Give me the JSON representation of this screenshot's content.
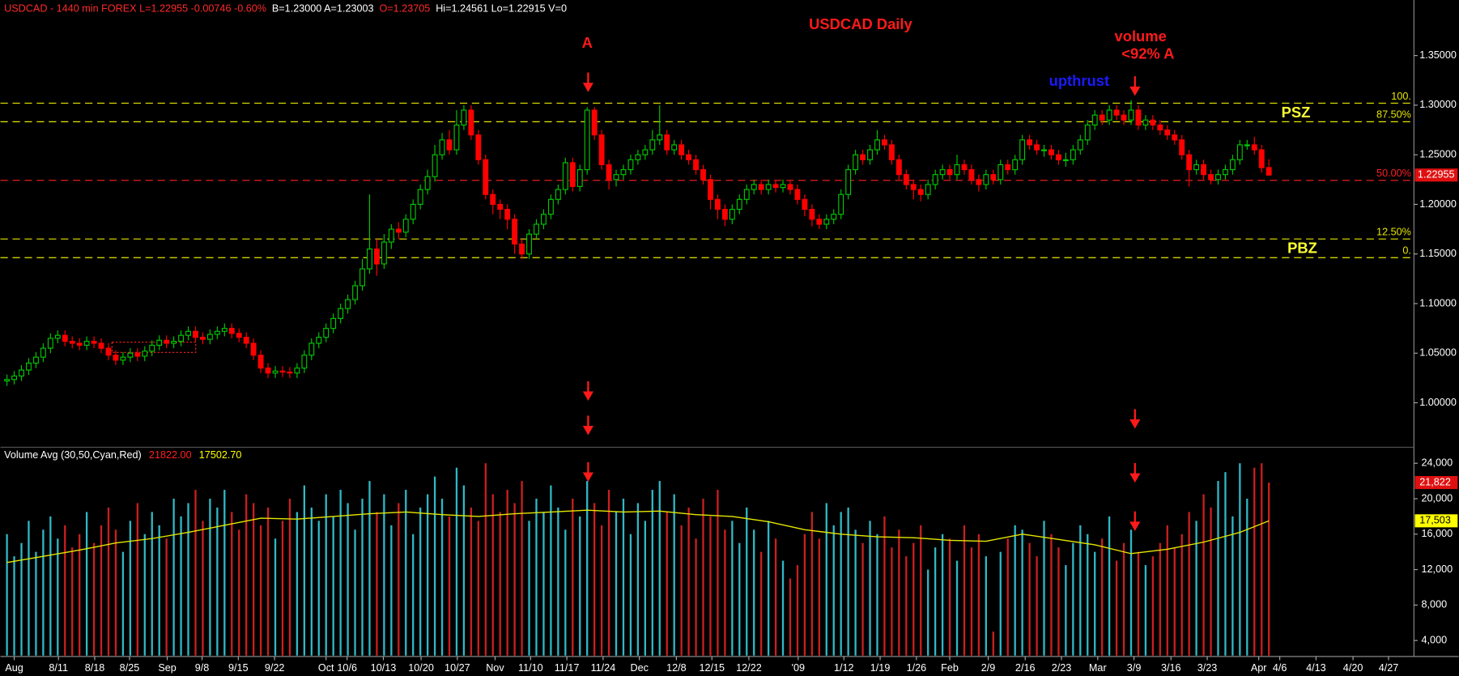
{
  "header": [
    {
      "text": "USDCAD - 1440 min  FOREX  L=1.22955  -0.00746  -0.60%",
      "color": "#ff2a2a"
    },
    {
      "text": "B=1.23000  A=1.23003",
      "color": "#ffffff"
    },
    {
      "text": "O=1.23705",
      "color": "#ff2a2a"
    },
    {
      "text": "Hi=1.24561  Lo=1.22915  V=0",
      "color": "#ffffff"
    }
  ],
  "chart_data": [
    {
      "type": "candlestick",
      "title": "USDCAD Daily",
      "up_color": "#00c800",
      "down_color": "#ff0000",
      "annotations": [
        "A",
        "volume",
        "<92% A",
        "upthrust",
        "PSZ",
        "PBZ"
      ],
      "xlim": [
        -0.9,
        194
      ],
      "ylim": [
        0.958,
        1.406
      ],
      "yticks": [
        {
          "value": 1.0,
          "label": "1.00000"
        },
        {
          "value": 1.05,
          "label": "1.05000"
        },
        {
          "value": 1.1,
          "label": "1.10000"
        },
        {
          "value": 1.15,
          "label": "1.15000"
        },
        {
          "value": 1.2,
          "label": "1.20000"
        },
        {
          "value": 1.25,
          "label": "1.25000"
        },
        {
          "value": 1.3,
          "label": "1.30000"
        },
        {
          "value": 1.35,
          "label": "1.35000"
        }
      ],
      "levels": [
        {
          "value": 1.302,
          "label": "100.",
          "color": "#e6e600"
        },
        {
          "value": 1.2833,
          "label": "87.50%",
          "color": "#e6e600"
        },
        {
          "value": 1.2242,
          "label": "50.00%",
          "color": "#ff2020"
        },
        {
          "value": 1.1651,
          "label": "12.50%",
          "color": "#e6e600"
        },
        {
          "value": 1.1463,
          "label": "0.",
          "color": "#e6e600"
        }
      ],
      "open": [
        1.022,
        1.0235,
        1.027,
        1.033,
        1.04,
        1.046,
        1.055,
        1.065,
        1.068,
        1.062,
        1.06,
        1.058,
        1.062,
        1.06,
        1.055,
        1.048,
        1.043,
        1.046,
        1.05,
        1.047,
        1.052,
        1.058,
        1.063,
        1.06,
        1.062,
        1.068,
        1.072,
        1.066,
        1.064,
        1.069,
        1.072,
        1.075,
        1.07,
        1.066,
        1.06,
        1.048,
        1.035,
        1.03,
        1.032,
        1.031,
        1.03,
        1.035,
        1.048,
        1.06,
        1.066,
        1.075,
        1.085,
        1.095,
        1.104,
        1.118,
        1.135,
        1.155,
        1.14,
        1.162,
        1.175,
        1.172,
        1.185,
        1.2,
        1.215,
        1.228,
        1.25,
        1.265,
        1.255,
        1.28,
        1.295,
        1.27,
        1.245,
        1.21,
        1.2,
        1.195,
        1.185,
        1.16,
        1.15,
        1.17,
        1.18,
        1.19,
        1.205,
        1.215,
        1.242,
        1.218,
        1.235,
        1.295,
        1.27,
        1.24,
        1.225,
        1.23,
        1.235,
        1.245,
        1.25,
        1.255,
        1.265,
        1.27,
        1.255,
        1.26,
        1.25,
        1.245,
        1.235,
        1.225,
        1.205,
        1.195,
        1.185,
        1.195,
        1.205,
        1.215,
        1.22,
        1.215,
        1.22,
        1.217,
        1.22,
        1.215,
        1.205,
        1.195,
        1.185,
        1.18,
        1.185,
        1.19,
        1.21,
        1.235,
        1.25,
        1.245,
        1.255,
        1.265,
        1.26,
        1.245,
        1.23,
        1.22,
        1.215,
        1.21,
        1.22,
        1.23,
        1.235,
        1.23,
        1.24,
        1.235,
        1.225,
        1.22,
        1.23,
        1.225,
        1.24,
        1.235,
        1.245,
        1.265,
        1.26,
        1.255,
        1.255,
        1.25,
        1.245,
        1.245,
        1.255,
        1.265,
        1.28,
        1.29,
        1.285,
        1.295,
        1.29,
        1.285,
        1.295,
        1.28,
        1.285,
        1.28,
        1.275,
        1.27,
        1.265,
        1.25,
        1.235,
        1.24,
        1.23,
        1.225,
        1.23,
        1.235,
        1.245,
        1.26,
        1.26,
        1.255,
        1.23705
      ],
      "high": [
        1.0285,
        1.032,
        1.038,
        1.045,
        1.051,
        1.06,
        1.07,
        1.073,
        1.073,
        1.067,
        1.065,
        1.067,
        1.067,
        1.065,
        1.06,
        1.053,
        1.051,
        1.055,
        1.055,
        1.057,
        1.063,
        1.068,
        1.068,
        1.067,
        1.073,
        1.077,
        1.077,
        1.071,
        1.074,
        1.077,
        1.08,
        1.08,
        1.075,
        1.071,
        1.065,
        1.053,
        1.04,
        1.037,
        1.037,
        1.036,
        1.04,
        1.053,
        1.065,
        1.071,
        1.08,
        1.09,
        1.1,
        1.109,
        1.123,
        1.145,
        1.21,
        1.165,
        1.17,
        1.18,
        1.182,
        1.19,
        1.205,
        1.22,
        1.235,
        1.26,
        1.272,
        1.275,
        1.295,
        1.3,
        1.3,
        1.275,
        1.25,
        1.215,
        1.205,
        1.2,
        1.19,
        1.165,
        1.175,
        1.185,
        1.195,
        1.21,
        1.22,
        1.247,
        1.247,
        1.24,
        1.298,
        1.298,
        1.275,
        1.245,
        1.235,
        1.24,
        1.25,
        1.255,
        1.26,
        1.275,
        1.3,
        1.275,
        1.265,
        1.265,
        1.255,
        1.25,
        1.24,
        1.23,
        1.21,
        1.2,
        1.2,
        1.21,
        1.22,
        1.225,
        1.225,
        1.225,
        1.225,
        1.225,
        1.225,
        1.22,
        1.21,
        1.2,
        1.19,
        1.19,
        1.195,
        1.215,
        1.24,
        1.255,
        1.255,
        1.26,
        1.275,
        1.27,
        1.265,
        1.25,
        1.235,
        1.225,
        1.22,
        1.225,
        1.235,
        1.24,
        1.24,
        1.25,
        1.245,
        1.24,
        1.23,
        1.235,
        1.235,
        1.245,
        1.245,
        1.25,
        1.27,
        1.27,
        1.265,
        1.26,
        1.26,
        1.255,
        1.252,
        1.26,
        1.27,
        1.285,
        1.295,
        1.295,
        1.3,
        1.3,
        1.295,
        1.305,
        1.3,
        1.29,
        1.29,
        1.285,
        1.28,
        1.275,
        1.27,
        1.255,
        1.245,
        1.245,
        1.235,
        1.235,
        1.24,
        1.25,
        1.265,
        1.265,
        1.268,
        1.26,
        1.24561
      ],
      "low": [
        1.017,
        1.0185,
        1.022,
        1.028,
        1.035,
        1.041,
        1.05,
        1.06,
        1.057,
        1.055,
        1.053,
        1.053,
        1.055,
        1.05,
        1.043,
        1.038,
        1.038,
        1.041,
        1.042,
        1.042,
        1.047,
        1.053,
        1.055,
        1.055,
        1.057,
        1.063,
        1.061,
        1.059,
        1.059,
        1.064,
        1.067,
        1.065,
        1.061,
        1.055,
        1.043,
        1.03,
        1.025,
        1.025,
        1.026,
        1.025,
        1.025,
        1.03,
        1.043,
        1.055,
        1.061,
        1.07,
        1.08,
        1.09,
        1.099,
        1.113,
        1.13,
        1.128,
        1.135,
        1.155,
        1.165,
        1.167,
        1.18,
        1.195,
        1.21,
        1.223,
        1.245,
        1.25,
        1.25,
        1.275,
        1.265,
        1.24,
        1.205,
        1.19,
        1.185,
        1.175,
        1.15,
        1.145,
        1.145,
        1.165,
        1.175,
        1.185,
        1.2,
        1.21,
        1.213,
        1.213,
        1.23,
        1.265,
        1.235,
        1.215,
        1.218,
        1.225,
        1.23,
        1.24,
        1.245,
        1.25,
        1.26,
        1.25,
        1.25,
        1.245,
        1.24,
        1.23,
        1.22,
        1.195,
        1.185,
        1.178,
        1.18,
        1.19,
        1.2,
        1.21,
        1.21,
        1.21,
        1.212,
        1.212,
        1.21,
        1.2,
        1.188,
        1.178,
        1.175,
        1.175,
        1.18,
        1.185,
        1.205,
        1.23,
        1.24,
        1.24,
        1.25,
        1.255,
        1.24,
        1.225,
        1.215,
        1.205,
        1.203,
        1.205,
        1.215,
        1.225,
        1.225,
        1.225,
        1.23,
        1.22,
        1.213,
        1.215,
        1.22,
        1.22,
        1.23,
        1.23,
        1.24,
        1.255,
        1.25,
        1.248,
        1.245,
        1.24,
        1.238,
        1.24,
        1.25,
        1.26,
        1.275,
        1.28,
        1.28,
        1.285,
        1.28,
        1.28,
        1.275,
        1.275,
        1.275,
        1.27,
        1.265,
        1.26,
        1.245,
        1.218,
        1.23,
        1.225,
        1.22,
        1.22,
        1.225,
        1.23,
        1.24,
        1.255,
        1.25,
        1.232,
        1.22915
      ],
      "close": [
        1.0235,
        1.027,
        1.033,
        1.04,
        1.046,
        1.055,
        1.065,
        1.068,
        1.062,
        1.06,
        1.058,
        1.062,
        1.06,
        1.055,
        1.048,
        1.043,
        1.046,
        1.05,
        1.047,
        1.052,
        1.058,
        1.063,
        1.06,
        1.062,
        1.068,
        1.072,
        1.066,
        1.064,
        1.069,
        1.072,
        1.075,
        1.07,
        1.066,
        1.06,
        1.048,
        1.035,
        1.03,
        1.032,
        1.031,
        1.03,
        1.035,
        1.048,
        1.06,
        1.066,
        1.075,
        1.085,
        1.095,
        1.104,
        1.118,
        1.135,
        1.155,
        1.14,
        1.162,
        1.175,
        1.172,
        1.185,
        1.2,
        1.215,
        1.228,
        1.25,
        1.265,
        1.255,
        1.28,
        1.295,
        1.27,
        1.245,
        1.21,
        1.2,
        1.195,
        1.185,
        1.16,
        1.15,
        1.17,
        1.18,
        1.19,
        1.205,
        1.215,
        1.242,
        1.218,
        1.235,
        1.295,
        1.27,
        1.24,
        1.225,
        1.23,
        1.235,
        1.245,
        1.25,
        1.255,
        1.265,
        1.27,
        1.255,
        1.26,
        1.25,
        1.245,
        1.235,
        1.225,
        1.205,
        1.195,
        1.185,
        1.195,
        1.205,
        1.215,
        1.22,
        1.215,
        1.22,
        1.217,
        1.22,
        1.215,
        1.205,
        1.195,
        1.185,
        1.18,
        1.185,
        1.19,
        1.21,
        1.235,
        1.25,
        1.245,
        1.255,
        1.265,
        1.26,
        1.245,
        1.23,
        1.22,
        1.215,
        1.21,
        1.22,
        1.23,
        1.235,
        1.23,
        1.24,
        1.235,
        1.225,
        1.22,
        1.23,
        1.225,
        1.24,
        1.235,
        1.245,
        1.265,
        1.26,
        1.255,
        1.255,
        1.25,
        1.245,
        1.245,
        1.255,
        1.265,
        1.28,
        1.29,
        1.285,
        1.295,
        1.29,
        1.285,
        1.295,
        1.28,
        1.285,
        1.28,
        1.275,
        1.27,
        1.265,
        1.25,
        1.235,
        1.24,
        1.23,
        1.225,
        1.23,
        1.235,
        1.245,
        1.26,
        1.26,
        1.255,
        1.237,
        1.22955
      ]
    },
    {
      "type": "bar",
      "legend": [
        "Volume Avg (30,50,Cyan,Red)",
        "21822.00",
        "17502.70"
      ],
      "up_color": "#2fb9c6",
      "down_color": "#cc1f1f",
      "xlim": [
        -0.9,
        194
      ],
      "ylim": [
        2300,
        25700
      ],
      "yticks": [
        {
          "value": 4000,
          "label": "4,000"
        },
        {
          "value": 8000,
          "label": "8,000"
        },
        {
          "value": 12000,
          "label": "12,000"
        },
        {
          "value": 16000,
          "label": "16,000"
        },
        {
          "value": 20000,
          "label": "20,000"
        },
        {
          "value": 24000,
          "label": "24,000"
        }
      ],
      "xticks": [
        {
          "value": 1.0,
          "label": "Aug"
        },
        {
          "value": 7.1,
          "label": "8/11"
        },
        {
          "value": 12.1,
          "label": "8/18"
        },
        {
          "value": 16.9,
          "label": "8/25"
        },
        {
          "value": 22.1,
          "label": "Sep"
        },
        {
          "value": 26.9,
          "label": "9/8"
        },
        {
          "value": 31.9,
          "label": "9/15"
        },
        {
          "value": 36.9,
          "label": "9/22"
        },
        {
          "value": 44.0,
          "label": "Oct"
        },
        {
          "value": 46.9,
          "label": "10/6"
        },
        {
          "value": 51.9,
          "label": "10/13"
        },
        {
          "value": 57.1,
          "label": "10/20"
        },
        {
          "value": 62.1,
          "label": "10/27"
        },
        {
          "value": 67.3,
          "label": "Nov"
        },
        {
          "value": 72.2,
          "label": "11/10"
        },
        {
          "value": 77.2,
          "label": "11/17"
        },
        {
          "value": 82.2,
          "label": "11/24"
        },
        {
          "value": 87.2,
          "label": "Dec"
        },
        {
          "value": 92.3,
          "label": "12/8"
        },
        {
          "value": 97.2,
          "label": "12/15"
        },
        {
          "value": 102.3,
          "label": "12/22"
        },
        {
          "value": 109.1,
          "label": "'09"
        },
        {
          "value": 115.4,
          "label": "1/12"
        },
        {
          "value": 120.4,
          "label": "1/19"
        },
        {
          "value": 125.4,
          "label": "1/26"
        },
        {
          "value": 130.0,
          "label": "Feb"
        },
        {
          "value": 135.3,
          "label": "2/9"
        },
        {
          "value": 140.4,
          "label": "2/16"
        },
        {
          "value": 145.4,
          "label": "2/23"
        },
        {
          "value": 150.4,
          "label": "Mar"
        },
        {
          "value": 155.4,
          "label": "3/9"
        },
        {
          "value": 160.5,
          "label": "3/16"
        },
        {
          "value": 165.5,
          "label": "3/23"
        },
        {
          "value": 172.6,
          "label": "Apr"
        },
        {
          "value": 175.5,
          "label": "4/6"
        },
        {
          "value": 180.5,
          "label": "4/13"
        },
        {
          "value": 185.6,
          "label": "4/20"
        },
        {
          "value": 190.5,
          "label": "4/27"
        }
      ],
      "values": [
        16000,
        13500,
        15000,
        17500,
        14000,
        16500,
        18000,
        15500,
        17000,
        14500,
        16000,
        18500,
        15000,
        17000,
        19000,
        16500,
        14000,
        17500,
        19500,
        16000,
        18500,
        17000,
        15500,
        20000,
        18000,
        19500,
        21000,
        17500,
        20000,
        19000,
        21000,
        18500,
        16500,
        20500,
        19500,
        17000,
        19000,
        15500,
        17500,
        20000,
        18500,
        21500,
        19000,
        17500,
        20500,
        18000,
        21000,
        19500,
        16500,
        20000,
        22000,
        18500,
        20500,
        17000,
        19500,
        21000,
        16000,
        19000,
        20500,
        22500,
        20000,
        18000,
        23500,
        21500,
        19000,
        17500,
        24000,
        20500,
        18500,
        21000,
        19500,
        22000,
        17500,
        20000,
        18500,
        21500,
        19000,
        16500,
        20000,
        18000,
        22000,
        19500,
        17000,
        21000,
        18500,
        20000,
        16000,
        19500,
        17500,
        21000,
        22000,
        18500,
        20500,
        17000,
        19000,
        15500,
        20000,
        18000,
        21000,
        16500,
        17500,
        15000,
        19000,
        16500,
        14000,
        17500,
        15500,
        13000,
        11000,
        12500,
        16000,
        18500,
        15500,
        19500,
        17000,
        18500,
        19000,
        16500,
        15000,
        17500,
        16000,
        18000,
        14500,
        16500,
        13500,
        15000,
        17000,
        12000,
        14500,
        16000,
        15500,
        13000,
        17000,
        14500,
        16000,
        13500,
        5000,
        14000,
        15500,
        17000,
        16500,
        15000,
        13500,
        17500,
        16000,
        14500,
        12500,
        15000,
        17000,
        16000,
        14000,
        15500,
        18000,
        13000,
        15000,
        16500,
        14000,
        12500,
        13500,
        15000,
        17000,
        14500,
        16000,
        18500,
        17500,
        20500,
        19000,
        22000,
        23000,
        18000,
        24000,
        20000,
        23500,
        24000,
        21822
      ],
      "average": {
        "color": "#e6e600",
        "x": [
          0,
          5,
          10,
          15,
          20,
          25,
          30,
          35,
          40,
          45,
          50,
          55,
          60,
          65,
          70,
          75,
          80,
          85,
          90,
          95,
          100,
          105,
          110,
          115,
          120,
          125,
          130,
          135,
          140,
          145,
          150,
          155,
          160,
          165,
          170,
          174
        ],
        "values": [
          12800,
          13500,
          14200,
          15000,
          15500,
          16200,
          17000,
          17800,
          17700,
          18000,
          18300,
          18500,
          18200,
          18000,
          18300,
          18500,
          18700,
          18500,
          18600,
          18200,
          18000,
          17400,
          16500,
          16000,
          15700,
          15600,
          15300,
          15200,
          16000,
          15400,
          14800,
          13800,
          14300,
          15100,
          16200,
          17502.7
        ]
      },
      "markers": [
        {
          "value": 21822,
          "label": "21,822",
          "color": "#e01010"
        },
        {
          "value": 17502.7,
          "label": "17,503",
          "color": "#ffff00"
        }
      ]
    }
  ]
}
